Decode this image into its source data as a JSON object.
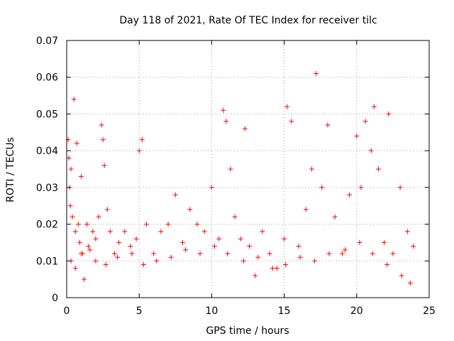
{
  "chart_data": {
    "type": "scatter",
    "title": "Day 118 of 2021, Rate Of TEC Index for receiver tilc",
    "xlabel": "GPS time / hours",
    "ylabel": "ROTI / TECUs",
    "xlim": [
      0,
      25
    ],
    "ylim": [
      0,
      0.07
    ],
    "x_ticks": [
      "0",
      "5",
      "10",
      "15",
      "20",
      "25"
    ],
    "y_ticks": [
      "0",
      "0.01",
      "0.02",
      "0.03",
      "0.04",
      "0.05",
      "0.06",
      "0.07"
    ],
    "x_tick_values": [
      0,
      5,
      10,
      15,
      20,
      25
    ],
    "y_tick_values": [
      0,
      0.01,
      0.02,
      0.03,
      0.04,
      0.05,
      0.06,
      0.07
    ],
    "grid": true,
    "marker": "plus",
    "color": "#ff0000",
    "series": [
      {
        "x": [
          0.1,
          0.15,
          0.2,
          0.25,
          0.3,
          0.4,
          0.5,
          0.6,
          0.7,
          0.8,
          0.9,
          1.0,
          1.1,
          1.2,
          1.4,
          1.6,
          1.8,
          2.0,
          2.2,
          2.4,
          2.5,
          2.6,
          2.8,
          3.0,
          3.3,
          3.6,
          4.0,
          4.4,
          4.8,
          5.0,
          5.2,
          5.5,
          6.0,
          6.5,
          7.0,
          7.5,
          8.0,
          8.5,
          9.0,
          9.5,
          10.0,
          10.5,
          10.8,
          11.0,
          11.3,
          11.6,
          12.0,
          12.3,
          12.6,
          13.0,
          13.5,
          14.0,
          14.5,
          15.0,
          15.2,
          15.5,
          16.0,
          16.5,
          16.9,
          17.2,
          17.6,
          18.0,
          18.5,
          19.0,
          19.5,
          20.0,
          20.3,
          20.6,
          21.0,
          21.2,
          21.5,
          21.9,
          22.2,
          22.5,
          23.0,
          23.5,
          23.9,
          0.3,
          0.6,
          1.0,
          1.5,
          2.0,
          2.7,
          3.5,
          4.5,
          5.3,
          6.2,
          7.2,
          8.2,
          9.2,
          10.2,
          11.1,
          12.2,
          13.2,
          14.2,
          15.1,
          16.1,
          17.1,
          18.1,
          19.2,
          20.2,
          21.1,
          22.1,
          23.1,
          23.7
        ],
        "y": [
          0.043,
          0.038,
          0.03,
          0.025,
          0.035,
          0.022,
          0.054,
          0.018,
          0.042,
          0.02,
          0.015,
          0.033,
          0.012,
          0.005,
          0.02,
          0.013,
          0.018,
          0.016,
          0.022,
          0.047,
          0.043,
          0.036,
          0.024,
          0.018,
          0.012,
          0.015,
          0.018,
          0.014,
          0.016,
          0.04,
          0.043,
          0.02,
          0.012,
          0.018,
          0.02,
          0.028,
          0.015,
          0.024,
          0.02,
          0.018,
          0.03,
          0.016,
          0.051,
          0.048,
          0.035,
          0.022,
          0.016,
          0.046,
          0.014,
          0.006,
          0.018,
          0.012,
          0.008,
          0.016,
          0.052,
          0.048,
          0.014,
          0.024,
          0.035,
          0.061,
          0.03,
          0.047,
          0.022,
          0.012,
          0.028,
          0.044,
          0.03,
          0.048,
          0.04,
          0.052,
          0.035,
          0.015,
          0.05,
          0.012,
          0.03,
          0.018,
          0.014,
          0.01,
          0.008,
          0.012,
          0.014,
          0.01,
          0.009,
          0.011,
          0.012,
          0.009,
          0.01,
          0.011,
          0.013,
          0.012,
          0.014,
          0.012,
          0.01,
          0.011,
          0.008,
          0.009,
          0.011,
          0.01,
          0.012,
          0.013,
          0.015,
          0.012,
          0.009,
          0.006,
          0.004
        ]
      }
    ]
  }
}
